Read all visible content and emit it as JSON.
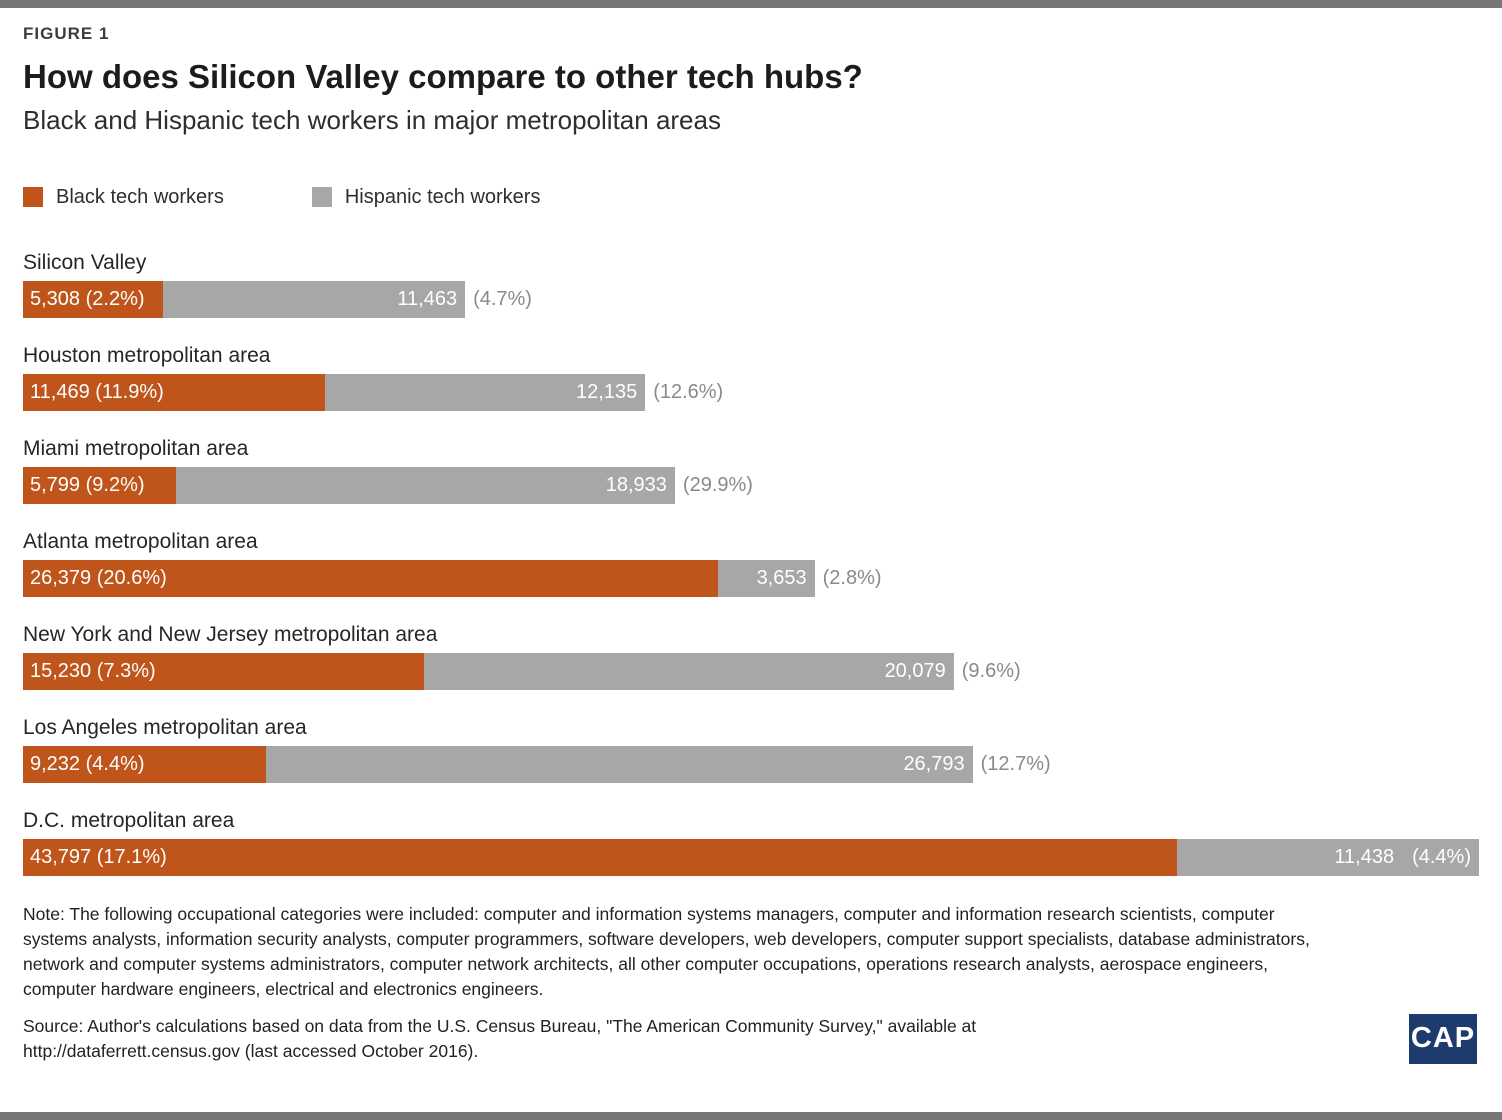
{
  "page": {
    "figure_label": "FIGURE 1",
    "title": "How does Silicon Valley compare to other tech hubs?",
    "subtitle": "Black and Hispanic tech workers in major metropolitan areas",
    "note": "Note: The following occupational categories were included: computer and information systems managers, computer and information research scientists, computer systems analysts, information security analysts, computer programmers, software developers, web developers, computer support specialists, database administrators, network and computer systems administrators, computer network architects, all other computer occupations, operations research analysts, aerospace engineers, computer hardware engineers, electrical and electronics engineers.",
    "source": "Source: Author's calculations based on data from the U.S. Census Bureau, \"The American Community Survey,\" available at http://dataferrett.census.gov (last accessed October 2016).",
    "logo_text": "CAP"
  },
  "colors": {
    "black_workers": "#bf551b",
    "hispanic_workers": "#a7a7a7",
    "outside_pct_label": "#8a8a8a",
    "logo_bg": "#1d3c6d",
    "rule": "#76777a"
  },
  "chart_data": {
    "type": "bar",
    "orientation": "horizontal-stacked",
    "title": "How does Silicon Valley compare to other tech hubs?",
    "subtitle": "Black and Hispanic tech workers in major metropolitan areas",
    "legend": [
      {
        "label": "Black tech workers",
        "color": "#bf551b"
      },
      {
        "label": "Hispanic tech workers",
        "color": "#a7a7a7"
      }
    ],
    "legend_position": "top-left",
    "grid": false,
    "max_total": 55235,
    "rows": [
      {
        "area": "Silicon Valley",
        "black": 5308,
        "black_pct": 2.2,
        "black_label": "5,308 (2.2%)",
        "hispanic": 11463,
        "hispanic_pct": 4.7,
        "hispanic_label": "11,463",
        "hispanic_pct_label": "(4.7%)",
        "pct_inside": false
      },
      {
        "area": "Houston metropolitan area",
        "black": 11469,
        "black_pct": 11.9,
        "black_label": "11,469 (11.9%)",
        "hispanic": 12135,
        "hispanic_pct": 12.6,
        "hispanic_label": "12,135",
        "hispanic_pct_label": "(12.6%)",
        "pct_inside": false
      },
      {
        "area": "Miami metropolitan area",
        "black": 5799,
        "black_pct": 9.2,
        "black_label": "5,799 (9.2%)",
        "hispanic": 18933,
        "hispanic_pct": 29.9,
        "hispanic_label": "18,933",
        "hispanic_pct_label": "(29.9%)",
        "pct_inside": false
      },
      {
        "area": "Atlanta metropolitan area",
        "black": 26379,
        "black_pct": 20.6,
        "black_label": "26,379 (20.6%)",
        "hispanic": 3653,
        "hispanic_pct": 2.8,
        "hispanic_label": "3,653",
        "hispanic_pct_label": "(2.8%)",
        "pct_inside": false
      },
      {
        "area": "New York and New Jersey metropolitan area",
        "black": 15230,
        "black_pct": 7.3,
        "black_label": "15,230 (7.3%)",
        "hispanic": 20079,
        "hispanic_pct": 9.6,
        "hispanic_label": "20,079",
        "hispanic_pct_label": "(9.6%)",
        "pct_inside": false
      },
      {
        "area": "Los Angeles metropolitan area",
        "black": 9232,
        "black_pct": 4.4,
        "black_label": "9,232 (4.4%)",
        "hispanic": 26793,
        "hispanic_pct": 12.7,
        "hispanic_label": "26,793",
        "hispanic_pct_label": "(12.7%)",
        "pct_inside": false
      },
      {
        "area": "D.C. metropolitan area",
        "black": 43797,
        "black_pct": 17.1,
        "black_label": "43,797 (17.1%)",
        "hispanic": 11438,
        "hispanic_pct": 4.4,
        "hispanic_label": "11,438",
        "hispanic_pct_label": "(4.4%)",
        "pct_inside": true
      }
    ]
  }
}
